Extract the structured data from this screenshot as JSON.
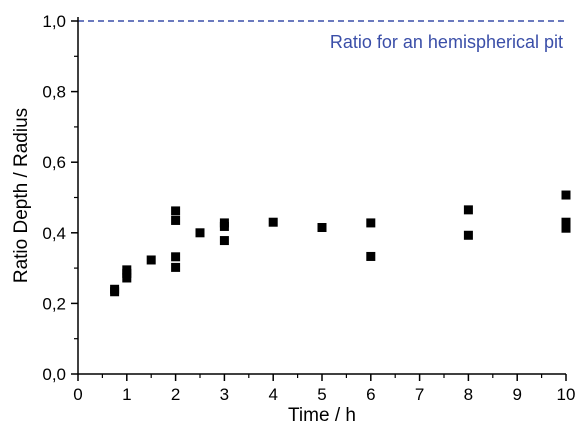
{
  "chart_data": {
    "type": "scatter",
    "xlabel": "Time / h",
    "ylabel": "Ratio Depth / Radius",
    "xlim": [
      0,
      10
    ],
    "ylim": [
      0,
      1.0
    ],
    "x_ticks": [
      0,
      1,
      2,
      3,
      4,
      5,
      6,
      7,
      8,
      9,
      10
    ],
    "x_tick_labels": [
      "0",
      "1",
      "2",
      "3",
      "4",
      "5",
      "6",
      "7",
      "8",
      "9",
      "10"
    ],
    "y_ticks": [
      0,
      0.2,
      0.4,
      0.6,
      0.8,
      1.0
    ],
    "y_tick_labels": [
      "0,0",
      "0,2",
      "0,4",
      "0,6",
      "0,8",
      "1,0"
    ],
    "grid": false,
    "marker": "square",
    "marker_color": "#000000",
    "series": [
      {
        "points": [
          [
            0.75,
            0.24
          ],
          [
            0.75,
            0.233
          ],
          [
            1.0,
            0.295
          ],
          [
            1.0,
            0.285
          ],
          [
            1.0,
            0.272
          ],
          [
            1.5,
            0.323
          ],
          [
            2.0,
            0.462
          ],
          [
            2.0,
            0.435
          ],
          [
            2.0,
            0.332
          ],
          [
            2.0,
            0.302
          ],
          [
            2.5,
            0.4
          ],
          [
            3.0,
            0.428
          ],
          [
            3.0,
            0.418
          ],
          [
            3.0,
            0.378
          ],
          [
            4.0,
            0.43
          ],
          [
            5.0,
            0.415
          ],
          [
            6.0,
            0.428
          ],
          [
            6.0,
            0.333
          ],
          [
            8.0,
            0.465
          ],
          [
            8.0,
            0.393
          ],
          [
            10.0,
            0.507
          ],
          [
            10.0,
            0.43
          ],
          [
            10.0,
            0.413
          ]
        ]
      }
    ],
    "reference_line": {
      "y": 1.0,
      "label": "Ratio for an hemispherical pit",
      "color": "#3a4ea8",
      "style": "dashed"
    }
  }
}
